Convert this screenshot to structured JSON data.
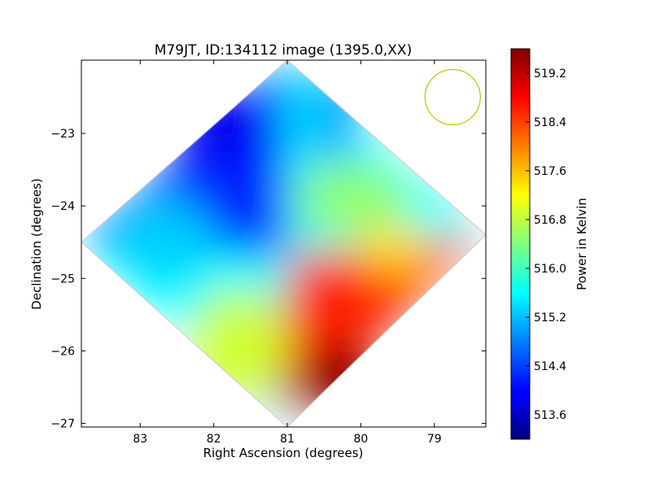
{
  "chart_data": {
    "type": "heatmap",
    "title": "M79JT, ID:134112 image (1395.0,XX)",
    "xlabel": "Right Ascension (degrees)",
    "ylabel": "Declination (degrees)",
    "xlim": [
      83.8,
      78.3
    ],
    "ylim": [
      -27.05,
      -21.99
    ],
    "x_ticks": [
      83,
      82,
      81,
      80,
      79
    ],
    "y_ticks": [
      -23,
      -24,
      -25,
      -26,
      -27
    ],
    "y_tick_labels": [
      "−23",
      "−24",
      "−25",
      "−26",
      "−27"
    ],
    "colorbar": {
      "label": "Power in Kelvin",
      "range": [
        513.2,
        519.6
      ],
      "ticks": [
        "513.6",
        "514.4",
        "515.2",
        "516.0",
        "516.8",
        "517.6",
        "518.4",
        "519.2"
      ],
      "colormap": "jet"
    },
    "footprint_vertices_deg": [
      [
        81.0,
        -21.99
      ],
      [
        78.3,
        -24.4
      ],
      [
        81.0,
        -27.05
      ],
      [
        83.8,
        -24.5
      ]
    ],
    "value_field": [
      {
        "label": "upper-left quadrant",
        "value": 514.2
      },
      {
        "label": "upper-right quadrant",
        "value": 515.6
      },
      {
        "label": "lower-left quadrant",
        "value": 515.6
      },
      {
        "label": "lower-right quadrant",
        "value": 518.6
      },
      {
        "label": "peak",
        "ra": 80.3,
        "dec": -26.4,
        "value": 519.5
      },
      {
        "label": "minimum",
        "ra": 81.9,
        "dec": -22.9,
        "value": 513.9
      }
    ],
    "beam": {
      "ra": 78.75,
      "dec": -22.5,
      "color": "#bfbf00"
    }
  }
}
